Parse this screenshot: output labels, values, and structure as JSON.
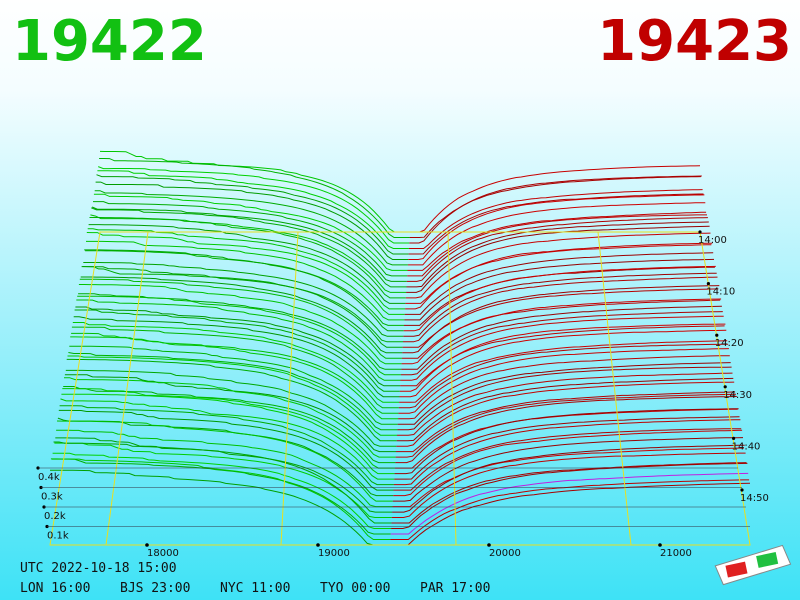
{
  "header": {
    "bid": "19422",
    "ask": "19423"
  },
  "price_axis": [
    "18000",
    "19000",
    "20000",
    "21000"
  ],
  "volume_axis": [
    "0.4k",
    "0.3k",
    "0.2k",
    "0.1k"
  ],
  "time_axis": [
    "14:00",
    "14:10",
    "14:20",
    "14:30",
    "14:40",
    "14:50"
  ],
  "footer": {
    "utc": "UTC 2022-10-18 15:00",
    "zones": [
      "LON 16:00",
      "BJS 23:00",
      "NYC 11:00",
      "TYO 00:00",
      "PAR 17:00"
    ]
  }
}
